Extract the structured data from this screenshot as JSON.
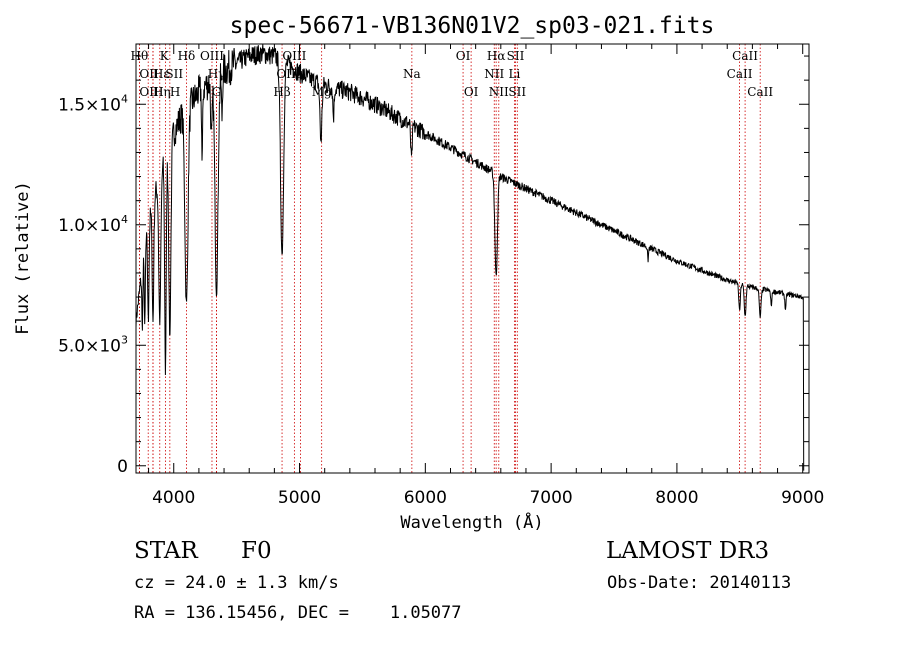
{
  "chart_data": {
    "type": "line",
    "title": "spec-56671-VB136N01V2_sp03-021.fits",
    "xlabel": "Wavelength (Å)",
    "ylabel": "Flux (relative)",
    "xlim": [
      3700,
      9050
    ],
    "ylim": [
      -300,
      17500
    ],
    "xticks": [
      {
        "value": 4000,
        "label": "4000"
      },
      {
        "value": 5000,
        "label": "5000"
      },
      {
        "value": 6000,
        "label": "6000"
      },
      {
        "value": 7000,
        "label": "7000"
      },
      {
        "value": 8000,
        "label": "8000"
      },
      {
        "value": 9000,
        "label": "9000"
      }
    ],
    "yticks": [
      {
        "value": 0,
        "mant": "0",
        "exp": ""
      },
      {
        "value": 5000,
        "mant": "5.0×10",
        "exp": "3"
      },
      {
        "value": 10000,
        "mant": "1.0×10",
        "exp": "4"
      },
      {
        "value": 15000,
        "mant": "1.5×10",
        "exp": "4"
      }
    ],
    "continuum": [
      [
        3700,
        6000
      ],
      [
        3750,
        8200
      ],
      [
        3800,
        10000
      ],
      [
        3850,
        11200
      ],
      [
        3900,
        12200
      ],
      [
        3950,
        13000
      ],
      [
        4000,
        13800
      ],
      [
        4050,
        14400
      ],
      [
        4100,
        14800
      ],
      [
        4200,
        15500
      ],
      [
        4300,
        16000
      ],
      [
        4400,
        16400
      ],
      [
        4500,
        16700
      ],
      [
        4600,
        17000
      ],
      [
        4700,
        17100
      ],
      [
        4800,
        17000
      ],
      [
        4900,
        16700
      ],
      [
        5000,
        16300
      ],
      [
        5100,
        16000
      ],
      [
        5200,
        15800
      ],
      [
        5400,
        15500
      ],
      [
        5600,
        15000
      ],
      [
        5800,
        14400
      ],
      [
        6000,
        13800
      ],
      [
        6200,
        13200
      ],
      [
        6400,
        12600
      ],
      [
        6600,
        12000
      ],
      [
        6800,
        11500
      ],
      [
        7000,
        11000
      ],
      [
        7200,
        10500
      ],
      [
        7400,
        10000
      ],
      [
        7600,
        9500
      ],
      [
        7800,
        9000
      ],
      [
        8000,
        8500
      ],
      [
        8200,
        8100
      ],
      [
        8400,
        7700
      ],
      [
        8600,
        7400
      ],
      [
        8800,
        7200
      ],
      [
        9000,
        7000
      ]
    ],
    "absorption": [
      {
        "w": 3750,
        "d": 0.3,
        "s": 4
      },
      {
        "w": 3770,
        "d": 0.35,
        "s": 4
      },
      {
        "w": 3798,
        "d": 0.4,
        "s": 5
      },
      {
        "w": 3835,
        "d": 0.45,
        "s": 6
      },
      {
        "w": 3889,
        "d": 0.5,
        "s": 8
      },
      {
        "w": 3934,
        "d": 0.7,
        "s": 6
      },
      {
        "w": 3969,
        "d": 0.6,
        "s": 8
      },
      {
        "w": 4101,
        "d": 0.55,
        "s": 12
      },
      {
        "w": 4226,
        "d": 0.2,
        "s": 4
      },
      {
        "w": 4300,
        "d": 0.15,
        "s": 6
      },
      {
        "w": 4340,
        "d": 0.55,
        "s": 12
      },
      {
        "w": 4383,
        "d": 0.12,
        "s": 4
      },
      {
        "w": 4861,
        "d": 0.48,
        "s": 12
      },
      {
        "w": 5170,
        "d": 0.15,
        "s": 8
      },
      {
        "w": 5270,
        "d": 0.08,
        "s": 5
      },
      {
        "w": 5890,
        "d": 0.1,
        "s": 6
      },
      {
        "w": 6563,
        "d": 0.35,
        "s": 10
      },
      {
        "w": 7770,
        "d": 0.06,
        "s": 4
      },
      {
        "w": 8498,
        "d": 0.15,
        "s": 6
      },
      {
        "w": 8542,
        "d": 0.17,
        "s": 7
      },
      {
        "w": 8662,
        "d": 0.16,
        "s": 7
      },
      {
        "w": 8750,
        "d": 0.08,
        "s": 5
      },
      {
        "w": 8863,
        "d": 0.09,
        "s": 5
      }
    ],
    "noise_seed": 7,
    "lines": [
      {
        "label": "Hθ",
        "x": 3797,
        "row": 0,
        "align": "end"
      },
      {
        "label": "OII",
        "x": 3727,
        "row": 1,
        "align": "start"
      },
      {
        "label": "OIII",
        "x": 3727,
        "row": 2,
        "align": "start"
      },
      {
        "label": "Hε",
        "x": 3835,
        "row": 1,
        "align": "start"
      },
      {
        "label": "Hη",
        "x": 3835,
        "row": 2,
        "align": "start"
      },
      {
        "label": "K",
        "x": 3889,
        "row": 0,
        "align": "start"
      },
      {
        "label": "SII",
        "x": 3934,
        "row": 1,
        "align": "start"
      },
      {
        "label": "H",
        "x": 3969,
        "row": 2,
        "align": "start"
      },
      {
        "label": "Hδ",
        "x": 4101,
        "row": 0,
        "align": "middle"
      },
      {
        "label": "OIII",
        "x": 4304,
        "row": 0,
        "align": "middle"
      },
      {
        "label": "Hγ",
        "x": 4340,
        "row": 1,
        "align": "middle"
      },
      {
        "label": "G",
        "x": 4340,
        "row": 2,
        "align": "middle"
      },
      {
        "label": "Hβ",
        "x": 4861,
        "row": 2,
        "align": "middle"
      },
      {
        "label": "OIII",
        "x": 4959,
        "row": 0,
        "align": "middle"
      },
      {
        "label": "OIII",
        "x": 5007,
        "row": 1,
        "align": "end"
      },
      {
        "label": "Mg",
        "x": 5176,
        "row": 2,
        "align": "middle"
      },
      {
        "label": "Na",
        "x": 5893,
        "row": 1,
        "align": "middle"
      },
      {
        "label": "OI",
        "x": 6300,
        "row": 0,
        "align": "middle"
      },
      {
        "label": "OI",
        "x": 6364,
        "row": 2,
        "align": "middle"
      },
      {
        "label": "Hα",
        "x": 6563,
        "row": 0,
        "align": "middle"
      },
      {
        "label": "NII",
        "x": 6548,
        "row": 1,
        "align": "middle"
      },
      {
        "label": "NII",
        "x": 6584,
        "row": 2,
        "align": "middle"
      },
      {
        "label": "SII",
        "x": 6717,
        "row": 0,
        "align": "middle"
      },
      {
        "label": "Li",
        "x": 6708,
        "row": 1,
        "align": "middle"
      },
      {
        "label": "SII",
        "x": 6731,
        "row": 2,
        "align": "middle"
      },
      {
        "label": "CaII",
        "x": 8542,
        "row": 0,
        "align": "middle"
      },
      {
        "label": "CaII",
        "x": 8498,
        "row": 1,
        "align": "middle"
      },
      {
        "label": "CaII",
        "x": 8662,
        "row": 2,
        "align": "middle"
      }
    ]
  },
  "info": {
    "class_label": "STAR",
    "subclass": "F0",
    "survey": "LAMOST DR3",
    "redshift": "cz = 24.0 ± 1.3 km/s",
    "obs_date": "Obs-Date: 20140113",
    "coords": "RA = 136.15456, DEC =    1.05077"
  },
  "colors": {
    "spectrum": "#000000",
    "line_marker": "#cc0000",
    "frame": "#000000",
    "background": "#ffffff"
  }
}
